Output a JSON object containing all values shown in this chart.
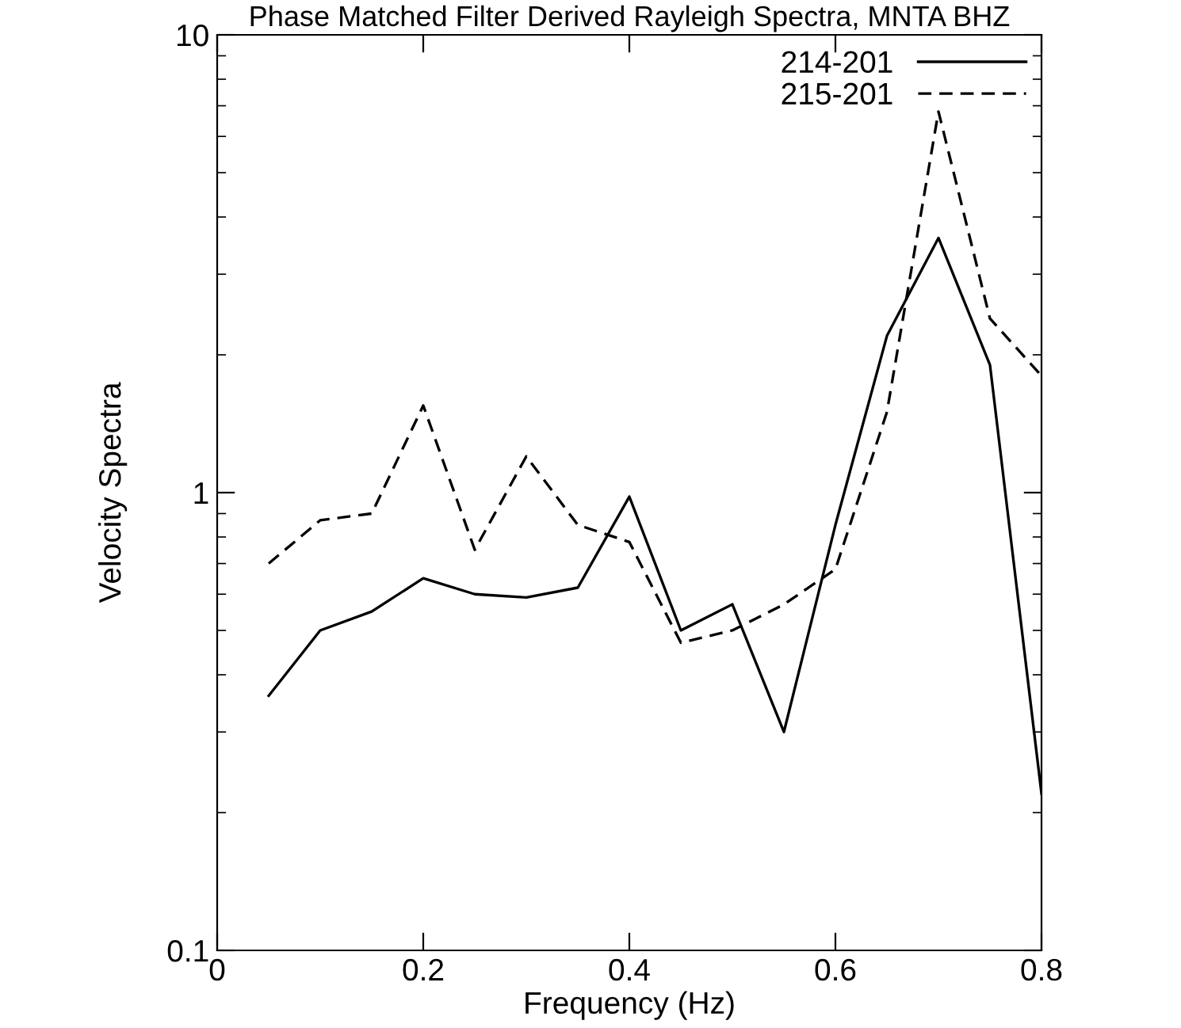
{
  "chart_data": {
    "type": "line",
    "title": "Phase Matched Filter Derived Rayleigh Spectra, MNTA BHZ",
    "xlabel": "Frequency (Hz)",
    "ylabel": "Velocity Spectra",
    "x": [
      0.05,
      0.1,
      0.15,
      0.2,
      0.25,
      0.3,
      0.35,
      0.4,
      0.45,
      0.5,
      0.55,
      0.6,
      0.65,
      0.7,
      0.75,
      0.8
    ],
    "series": [
      {
        "name": "214-201",
        "color": "#000000",
        "line_style": "solid",
        "values": [
          0.36,
          0.5,
          0.55,
          0.65,
          0.6,
          0.59,
          0.62,
          0.98,
          0.5,
          0.57,
          0.3,
          0.85,
          2.2,
          3.6,
          1.9,
          0.22
        ]
      },
      {
        "name": "215-201",
        "color": "#000000",
        "line_style": "dashed",
        "values": [
          0.7,
          0.87,
          0.9,
          1.55,
          0.75,
          1.2,
          0.85,
          0.78,
          0.47,
          0.5,
          0.57,
          0.68,
          1.5,
          6.8,
          2.4,
          1.8
        ]
      }
    ],
    "log": "y",
    "xlim": [
      0,
      0.8
    ],
    "ylim": [
      0.1,
      10
    ],
    "xticks": [
      0,
      0.2,
      0.4,
      0.6,
      0.8
    ],
    "yticks": [
      0.1,
      1,
      10
    ],
    "legend": "top right",
    "grid": false,
    "marker": "none"
  }
}
